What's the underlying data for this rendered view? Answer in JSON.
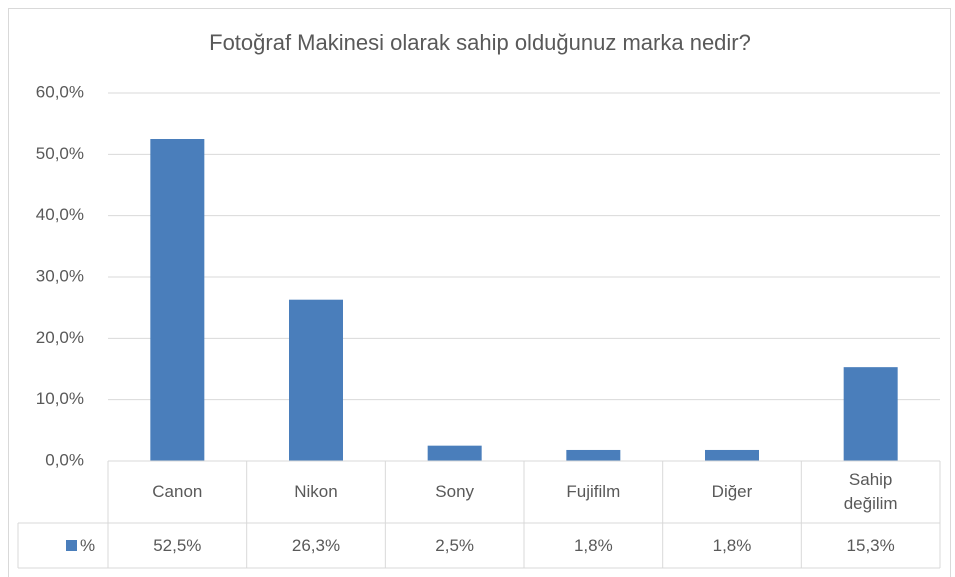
{
  "chart_data": {
    "type": "bar",
    "title": "Fotoğraf Makinesi olarak sahip olduğunuz marka nedir?",
    "categories": [
      "Canon",
      "Nikon",
      "Sony",
      "Fujifilm",
      "Diğer",
      "Sahip değilim"
    ],
    "series": [
      {
        "name": "%",
        "color": "#4a7ebb",
        "values": [
          52.5,
          26.3,
          2.5,
          1.8,
          1.8,
          15.3
        ],
        "value_labels": [
          "52,5%",
          "26,3%",
          "2,5%",
          "1,8%",
          "1,8%",
          "15,3%"
        ]
      }
    ],
    "ylim": [
      0,
      60
    ],
    "yticks": [
      {
        "value": 0,
        "label": "0,0%"
      },
      {
        "value": 10,
        "label": "10,0%"
      },
      {
        "value": 20,
        "label": "20,0%"
      },
      {
        "value": 30,
        "label": "30,0%"
      },
      {
        "value": 40,
        "label": "40,0%"
      },
      {
        "value": 50,
        "label": "50,0%"
      },
      {
        "value": 60,
        "label": "60,0%"
      }
    ],
    "grid": true,
    "data_table": true
  }
}
